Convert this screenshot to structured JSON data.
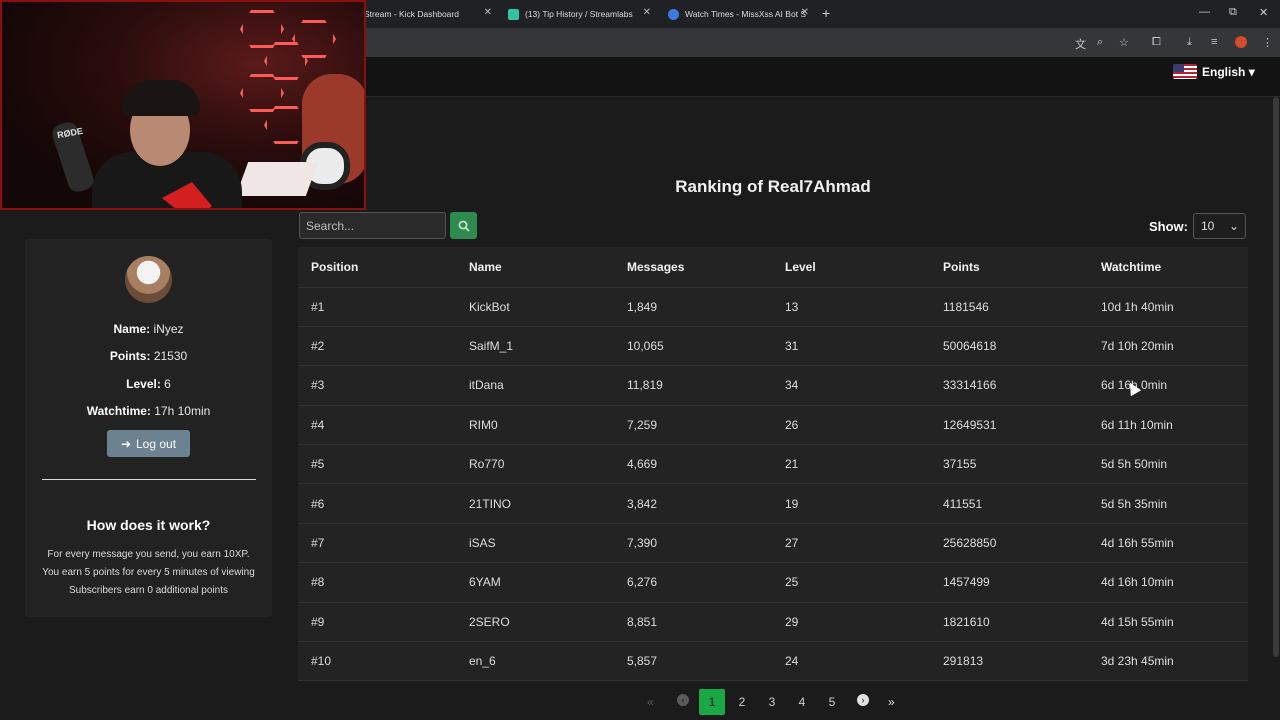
{
  "browser": {
    "tabs": [
      {
        "title": "Stream - Kick Dashboard"
      },
      {
        "title": "(13) Tip History / Streamlabs"
      },
      {
        "title": "Watch Times - MissXss AI Bot S"
      }
    ],
    "window_controls": {
      "minimize": "—",
      "restore": "⧉",
      "close": "✕"
    },
    "toolbar_icons": [
      "translate-icon",
      "zoom-icon",
      "star-icon",
      "extensions-icon",
      "download-icon",
      "media-icon",
      "profile-icon",
      "menu-icon"
    ]
  },
  "header": {
    "language": "English"
  },
  "webcam": {
    "mic_brand": "RØDE"
  },
  "sidebar": {
    "name_label": "Name:",
    "name_value": " iNyez",
    "points_label": "Points:",
    "points_value": " 21530",
    "level_label": "Level:",
    "level_value": " 6",
    "watchtime_label": "Watchtime:",
    "watchtime_value": " 17h 10min",
    "logout_label": "Log out",
    "how_title": "How does it work?",
    "how_lines": [
      "For every message you send, you earn 10XP.",
      "You earn 5 points for every 5 minutes of viewing",
      "Subscribers earn 0 additional points"
    ]
  },
  "main": {
    "title": "Ranking of Real7Ahmad",
    "search_placeholder": "Search...",
    "show_label": "Show:",
    "show_value": "10"
  },
  "table": {
    "headers": [
      "Position",
      "Name",
      "Messages",
      "Level",
      "Points",
      "Watchtime"
    ],
    "rows": [
      [
        "#1",
        "KickBot",
        "1,849",
        "13",
        "1181546",
        "10d 1h 40min"
      ],
      [
        "#2",
        "SaifM_1",
        "10,065",
        "31",
        "50064618",
        "7d 10h 20min"
      ],
      [
        "#3",
        "itDana",
        "11,819",
        "34",
        "33314166",
        "6d 16h 0min"
      ],
      [
        "#4",
        "RIM0",
        "7,259",
        "26",
        "12649531",
        "6d 11h 10min"
      ],
      [
        "#5",
        "Ro770",
        "4,669",
        "21",
        "37155",
        "5d 5h 50min"
      ],
      [
        "#6",
        "21TINO",
        "3,842",
        "19",
        "411551",
        "5d 5h 35min"
      ],
      [
        "#7",
        "iSAS",
        "7,390",
        "27",
        "25628850",
        "4d 16h 55min"
      ],
      [
        "#8",
        "6YAM",
        "6,276",
        "25",
        "1457499",
        "4d 16h 10min"
      ],
      [
        "#9",
        "2SERO",
        "8,851",
        "29",
        "1821610",
        "4d 15h 55min"
      ],
      [
        "#10",
        "en_6",
        "5,857",
        "24",
        "291813",
        "3d 23h 45min"
      ]
    ]
  },
  "pagination": {
    "active": "1",
    "pages": [
      "2",
      "3",
      "4",
      "5"
    ]
  },
  "colors": {
    "accent_green": "#19a845",
    "search_button": "#2f8a4f",
    "logout_button": "#6c8290",
    "panel": "#232323"
  }
}
